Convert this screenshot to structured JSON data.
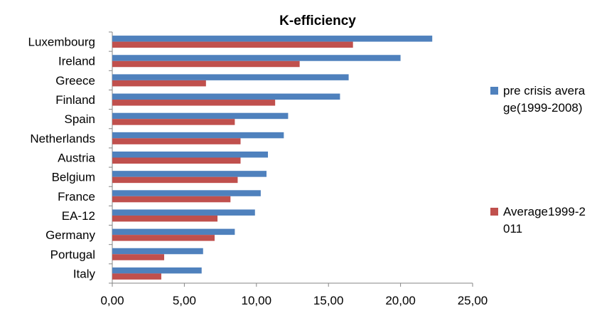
{
  "chart_data": {
    "type": "bar",
    "orientation": "horizontal",
    "title": "K-efficiency",
    "xlabel": "",
    "ylabel": "",
    "categories": [
      "Luxembourg",
      "Ireland",
      "Greece",
      "Finland",
      "Spain",
      "Netherlands",
      "Austria",
      "Belgium",
      "France",
      "EA-12",
      "Germany",
      "Portugal",
      "Italy"
    ],
    "series": [
      {
        "name": "pre crisis average(1999-2008)",
        "color": "#4f81bd",
        "values": [
          22.2,
          20.0,
          16.4,
          15.8,
          12.2,
          11.9,
          10.8,
          10.7,
          10.3,
          9.9,
          8.5,
          6.3,
          6.2
        ]
      },
      {
        "name": "Average1999-2011",
        "color": "#c0504d",
        "values": [
          16.7,
          13.0,
          6.5,
          11.3,
          8.5,
          8.9,
          8.9,
          8.7,
          8.2,
          7.3,
          7.1,
          3.6,
          3.4
        ]
      }
    ],
    "xlim": [
      0,
      25
    ],
    "xticks": [
      "0,00",
      "5,00",
      "10,00",
      "15,00",
      "20,00",
      "25,00"
    ],
    "grid": false,
    "legend_position": "right"
  }
}
